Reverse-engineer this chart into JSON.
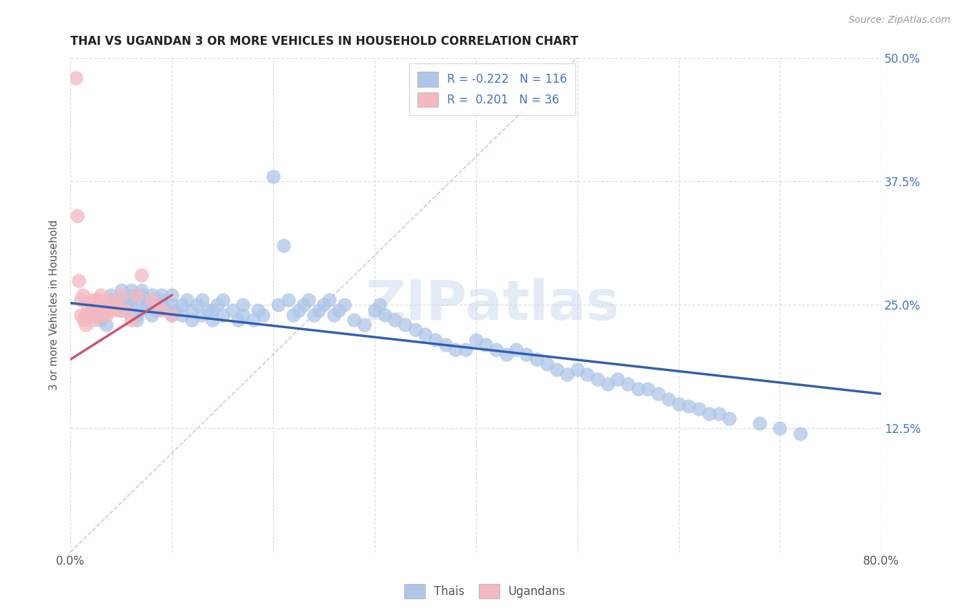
{
  "title": "THAI VS UGANDAN 3 OR MORE VEHICLES IN HOUSEHOLD CORRELATION CHART",
  "source": "Source: ZipAtlas.com",
  "ylabel": "3 or more Vehicles in Household",
  "watermark": "ZIPatlas",
  "xlim": [
    0.0,
    0.8
  ],
  "ylim": [
    0.0,
    0.5
  ],
  "xticks": [
    0.0,
    0.1,
    0.2,
    0.3,
    0.4,
    0.5,
    0.6,
    0.7,
    0.8
  ],
  "xticklabels": [
    "0.0%",
    "",
    "",
    "",
    "",
    "",
    "",
    "",
    "80.0%"
  ],
  "yticks": [
    0.0,
    0.125,
    0.25,
    0.375,
    0.5
  ],
  "yticklabels_right": [
    "",
    "12.5%",
    "25.0%",
    "37.5%",
    "50.0%"
  ],
  "thai_color": "#aec6e8",
  "ugandan_color": "#f4b8c1",
  "thai_line_color": "#3060b0",
  "ugandan_line_color": "#d05070",
  "diagonal_color": "#d0d0d0",
  "thai_R": -0.222,
  "thai_N": 116,
  "ugandan_R": 0.201,
  "ugandan_N": 36,
  "thai_intercept": 0.252,
  "thai_slope": -0.115,
  "ugandan_intercept": 0.195,
  "ugandan_slope": 0.65,
  "thai_x": [
    0.02,
    0.025,
    0.03,
    0.035,
    0.04,
    0.04,
    0.045,
    0.05,
    0.05,
    0.05,
    0.05,
    0.055,
    0.055,
    0.06,
    0.06,
    0.06,
    0.06,
    0.06,
    0.065,
    0.065,
    0.07,
    0.07,
    0.07,
    0.07,
    0.075,
    0.075,
    0.08,
    0.08,
    0.08,
    0.085,
    0.09,
    0.09,
    0.09,
    0.095,
    0.1,
    0.1,
    0.1,
    0.105,
    0.11,
    0.11,
    0.115,
    0.12,
    0.12,
    0.125,
    0.13,
    0.13,
    0.135,
    0.14,
    0.14,
    0.145,
    0.15,
    0.15,
    0.16,
    0.165,
    0.17,
    0.17,
    0.18,
    0.185,
    0.19,
    0.2,
    0.205,
    0.21,
    0.215,
    0.22,
    0.225,
    0.23,
    0.235,
    0.24,
    0.245,
    0.25,
    0.255,
    0.26,
    0.265,
    0.27,
    0.28,
    0.29,
    0.3,
    0.305,
    0.31,
    0.32,
    0.33,
    0.34,
    0.35,
    0.36,
    0.37,
    0.38,
    0.39,
    0.4,
    0.41,
    0.42,
    0.43,
    0.44,
    0.45,
    0.46,
    0.47,
    0.48,
    0.49,
    0.5,
    0.51,
    0.52,
    0.53,
    0.54,
    0.55,
    0.56,
    0.57,
    0.58,
    0.59,
    0.6,
    0.61,
    0.62,
    0.63,
    0.64,
    0.65,
    0.68,
    0.7,
    0.72
  ],
  "thai_y": [
    0.24,
    0.245,
    0.235,
    0.23,
    0.26,
    0.25,
    0.255,
    0.245,
    0.25,
    0.255,
    0.265,
    0.25,
    0.245,
    0.24,
    0.25,
    0.255,
    0.26,
    0.265,
    0.235,
    0.24,
    0.245,
    0.255,
    0.26,
    0.265,
    0.25,
    0.255,
    0.24,
    0.25,
    0.26,
    0.245,
    0.25,
    0.255,
    0.26,
    0.245,
    0.24,
    0.25,
    0.26,
    0.245,
    0.24,
    0.25,
    0.255,
    0.235,
    0.245,
    0.25,
    0.24,
    0.255,
    0.245,
    0.235,
    0.245,
    0.25,
    0.24,
    0.255,
    0.245,
    0.235,
    0.24,
    0.25,
    0.235,
    0.245,
    0.24,
    0.38,
    0.25,
    0.31,
    0.255,
    0.24,
    0.245,
    0.25,
    0.255,
    0.24,
    0.245,
    0.25,
    0.255,
    0.24,
    0.245,
    0.25,
    0.235,
    0.23,
    0.245,
    0.25,
    0.24,
    0.235,
    0.23,
    0.225,
    0.22,
    0.215,
    0.21,
    0.205,
    0.205,
    0.215,
    0.21,
    0.205,
    0.2,
    0.205,
    0.2,
    0.195,
    0.19,
    0.185,
    0.18,
    0.185,
    0.18,
    0.175,
    0.17,
    0.175,
    0.17,
    0.165,
    0.165,
    0.16,
    0.155,
    0.15,
    0.148,
    0.145,
    0.14,
    0.14,
    0.135,
    0.13,
    0.125,
    0.12
  ],
  "ugandan_x": [
    0.005,
    0.007,
    0.008,
    0.01,
    0.01,
    0.012,
    0.013,
    0.015,
    0.015,
    0.017,
    0.018,
    0.02,
    0.02,
    0.022,
    0.022,
    0.025,
    0.025,
    0.028,
    0.03,
    0.03,
    0.032,
    0.035,
    0.035,
    0.038,
    0.04,
    0.042,
    0.045,
    0.048,
    0.05,
    0.055,
    0.06,
    0.065,
    0.07,
    0.08,
    0.09,
    0.1
  ],
  "ugandan_y": [
    0.48,
    0.34,
    0.275,
    0.255,
    0.24,
    0.26,
    0.235,
    0.24,
    0.23,
    0.25,
    0.24,
    0.245,
    0.255,
    0.245,
    0.235,
    0.255,
    0.245,
    0.255,
    0.26,
    0.24,
    0.245,
    0.25,
    0.24,
    0.245,
    0.255,
    0.245,
    0.25,
    0.245,
    0.26,
    0.245,
    0.235,
    0.26,
    0.28,
    0.255,
    0.245,
    0.24
  ]
}
